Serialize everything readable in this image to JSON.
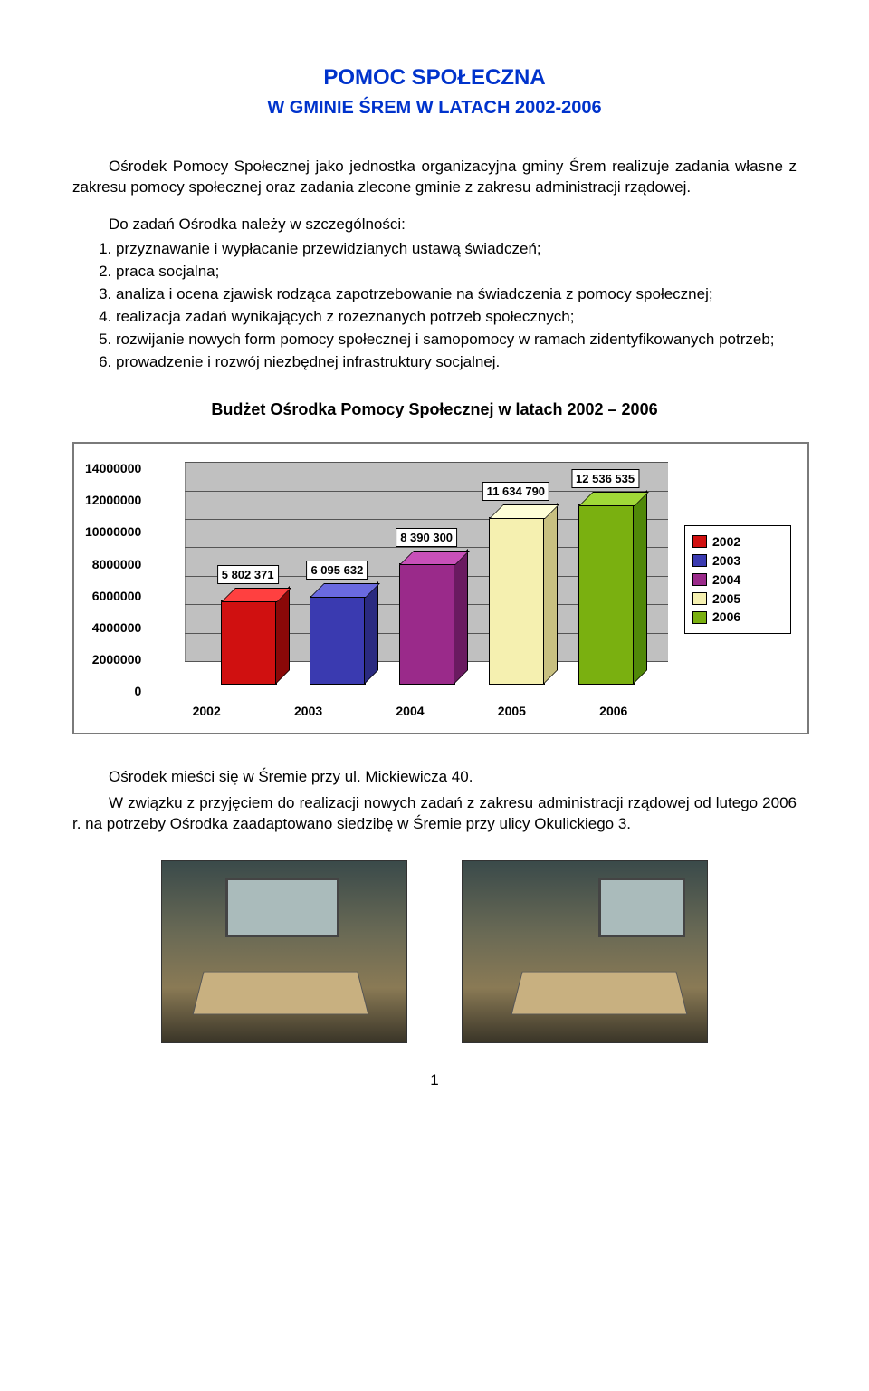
{
  "title_main": "POMOC SPOŁECZNA",
  "title_sub": "W GMINIE ŚREM W LATACH 2002-2006",
  "intro": "Ośrodek Pomocy Społecznej jako jednostka organizacyjna gminy Śrem realizuje zadania własne z zakresu pomocy społecznej oraz zadania zlecone gminie z zakresu administracji rządowej.",
  "tasks_lead": "Do zadań Ośrodka należy w szczególności:",
  "tasks": [
    "przyznawanie i wypłacanie przewidzianych ustawą świadczeń;",
    "praca socjalna;",
    "analiza i ocena zjawisk rodząca zapotrzebowanie na świadczenia z pomocy społecznej;",
    "realizacja zadań wynikających z rozeznanych potrzeb społecznych;",
    "rozwijanie nowych form pomocy społecznej i samopomocy w ramach zidentyfikowanych potrzeb;",
    "prowadzenie i rozwój niezbędnej infrastruktury socjalnej."
  ],
  "chart": {
    "heading": "Budżet Ośrodka Pomocy Społecznej w latach 2002 – 2006",
    "type": "bar-3d",
    "categories": [
      "2002",
      "2003",
      "2004",
      "2005",
      "2006"
    ],
    "values": [
      5802371,
      6095632,
      8390300,
      11634790,
      12536535
    ],
    "value_labels": [
      "5 802 371",
      "6 095 632",
      "8 390 300",
      "11 634 790",
      "12 536 535"
    ],
    "front_colors": [
      "#d01010",
      "#3a3ab0",
      "#9a2a8a",
      "#f5f0b0",
      "#7ab010"
    ],
    "top_colors": [
      "#ff4040",
      "#6a6ae0",
      "#c850b8",
      "#ffffd8",
      "#a0d838"
    ],
    "side_colors": [
      "#8a0808",
      "#2a2a80",
      "#6a1a60",
      "#c8c080",
      "#508808"
    ],
    "ymax": 14000000,
    "ytick_step": 2000000,
    "ytick_labels": [
      "14000000",
      "12000000",
      "10000000",
      "8000000",
      "6000000",
      "4000000",
      "2000000",
      "0"
    ],
    "legend_labels": [
      "2002",
      "2003",
      "2004",
      "2005",
      "2006"
    ],
    "plot_bg": "#c0c0c0",
    "axis_font_size": 14
  },
  "after_p1": "Ośrodek mieści się w Śremie przy ul. Mickiewicza 40.",
  "after_p2": "W związku z przyjęciem do realizacji nowych zadań z zakresu administracji rządowej od lutego 2006 r. na potrzeby Ośrodka zaadaptowano siedzibę w Śremie przy ulicy Okulickiego 3.",
  "page_number": "1"
}
